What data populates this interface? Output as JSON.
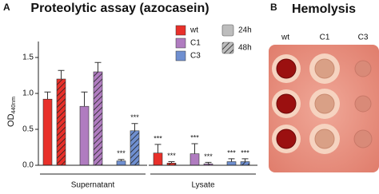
{
  "chart_data": {
    "type": "grouped-bar",
    "panel_label": "A",
    "title": "Proteolytic assay (azocasein)",
    "ylabel": "OD",
    "ylabel_sub": "440nm",
    "categories": [
      "Supernatant",
      "Lysate"
    ],
    "timepoints": [
      {
        "name": "24h",
        "hatched": false
      },
      {
        "name": "48h",
        "hatched": true
      }
    ],
    "series": [
      {
        "name": "wt",
        "color": "#e8302a",
        "values": [
          [
            0.92,
            1.2
          ],
          [
            0.17,
            0.03
          ]
        ],
        "errors": [
          [
            0.1,
            0.12
          ],
          [
            0.12,
            0.02
          ]
        ],
        "annotations": [
          [
            null,
            null
          ],
          [
            "***",
            "***"
          ]
        ]
      },
      {
        "name": "C1",
        "color": "#b07cc0",
        "values": [
          [
            0.82,
            1.3
          ],
          [
            0.16,
            0.02
          ]
        ],
        "errors": [
          [
            0.2,
            0.13
          ],
          [
            0.14,
            0.02
          ]
        ],
        "annotations": [
          [
            null,
            null
          ],
          [
            "***",
            "***"
          ]
        ]
      },
      {
        "name": "C3",
        "color": "#6f8fd0",
        "values": [
          [
            0.06,
            0.48
          ],
          [
            0.05,
            0.05
          ]
        ],
        "errors": [
          [
            0.02,
            0.1
          ],
          [
            0.04,
            0.04
          ]
        ],
        "annotations": [
          [
            "***",
            "***"
          ],
          [
            "***",
            "***"
          ]
        ]
      }
    ],
    "ylim": [
      0,
      1.5
    ],
    "yticks": [
      {
        "value": 0,
        "label": "0.0"
      },
      {
        "value": 0.5,
        "label": "0.5"
      },
      {
        "value": 1,
        "label": "1.0"
      },
      {
        "value": 1.5,
        "label": "1.5"
      }
    ]
  },
  "image": {
    "panel_label": "B",
    "title": "Hemolysis",
    "columns": [
      "wt",
      "C1",
      "C3"
    ]
  }
}
